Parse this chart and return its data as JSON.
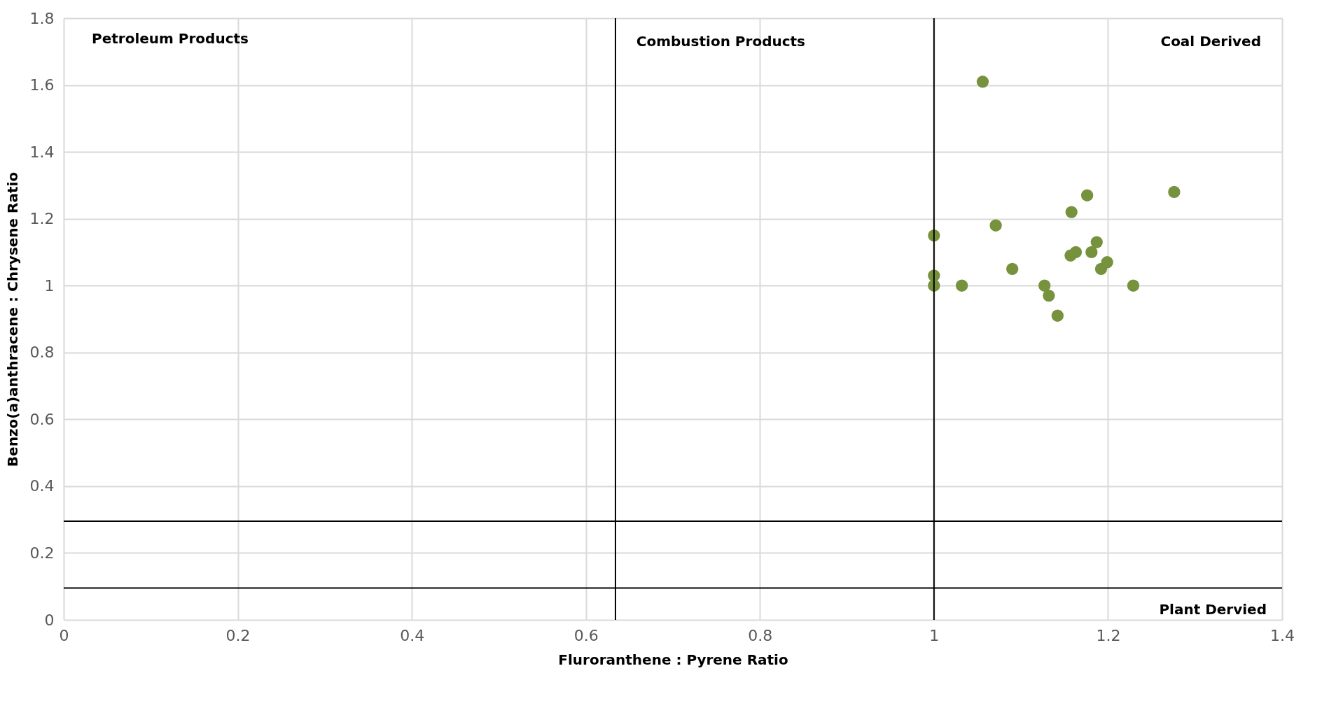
{
  "chart_data": {
    "type": "scatter",
    "xlabel": "Fluroranthene : Pyrene Ratio",
    "ylabel": "Benzo(a)anthracene : Chrysene Ratio",
    "x": [
      1.056,
      1.0,
      1.071,
      1.0,
      1.0,
      1.032,
      1.09,
      1.127,
      1.132,
      1.142,
      1.158,
      1.176,
      1.157,
      1.163,
      1.181,
      1.187,
      1.192,
      1.199,
      1.229,
      1.276
    ],
    "series": [
      {
        "color": "#76923c",
        "values": [
          1.61,
          1.15,
          1.18,
          1.03,
          1.0,
          1.0,
          1.05,
          1.0,
          0.97,
          0.91,
          1.22,
          1.27,
          1.09,
          1.1,
          1.1,
          1.13,
          1.05,
          1.07,
          1.0,
          1.28
        ]
      }
    ],
    "xlim": [
      0,
      1.4
    ],
    "xticks": [
      0,
      0.2,
      0.4,
      0.6,
      0.8,
      1,
      1.2,
      1.4
    ],
    "ylim": [
      0,
      1.8
    ],
    "yticks": [
      0,
      0.2,
      0.4,
      0.6,
      0.8,
      1,
      1.2,
      1.4,
      1.6,
      1.8
    ],
    "grid": true,
    "marker": "circle",
    "ref_lines": [
      {
        "axis": "x",
        "value": 0.634,
        "color": "#000000"
      },
      {
        "axis": "x",
        "value": 1.0,
        "color": "#000000"
      },
      {
        "axis": "y",
        "value": 0.295,
        "color": "#000000"
      },
      {
        "axis": "y",
        "value": 0.095,
        "color": "#000000"
      }
    ],
    "annotations": [
      "Petroleum Products",
      "Combustion Products",
      "Coal Derived",
      "Plant Dervied"
    ]
  }
}
